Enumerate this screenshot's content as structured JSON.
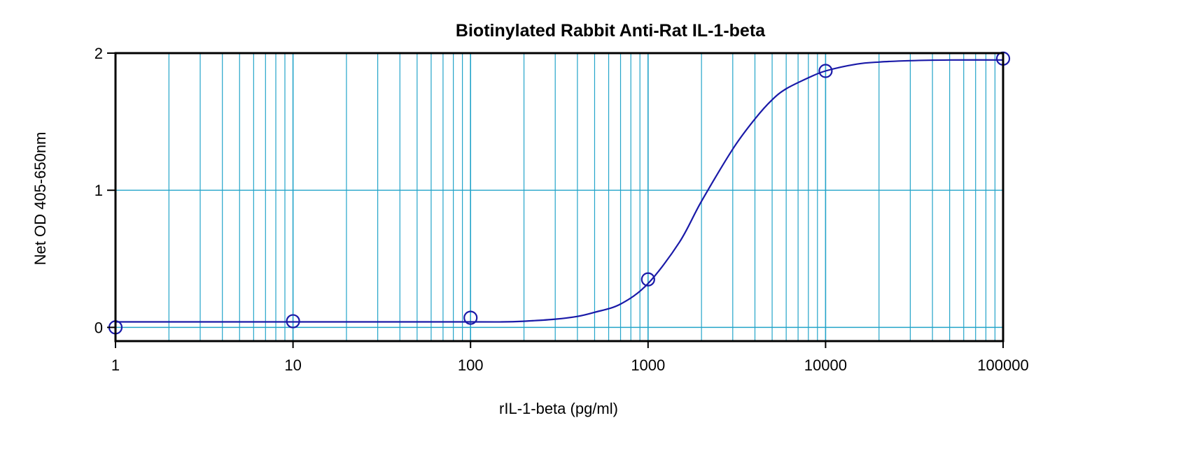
{
  "chart_data": {
    "type": "scatter",
    "title": "Biotinylated Rabbit Anti-Rat IL-1-beta",
    "xlabel": "rIL-1-beta (pg/ml)",
    "ylabel": "Net OD 405-650nm",
    "x_scale": "log",
    "xlim": [
      1,
      100000
    ],
    "ylim": [
      -0.1,
      2
    ],
    "x_ticks": [
      1,
      10,
      100,
      1000,
      10000,
      100000
    ],
    "x_tick_labels": [
      "1",
      "10",
      "100",
      "1000",
      "10000",
      "100000"
    ],
    "y_ticks": [
      0,
      1,
      2
    ],
    "y_tick_labels": [
      "0",
      "1",
      "2"
    ],
    "grid": true,
    "legend": "none",
    "series": [
      {
        "x": [
          1,
          10,
          100,
          1000,
          10000,
          100000
        ],
        "y": [
          0.0,
          0.045,
          0.07,
          0.35,
          1.87,
          1.96
        ]
      }
    ],
    "fit_curve": {
      "x": [
        1,
        10,
        100,
        150,
        200,
        300,
        400,
        500,
        700,
        1000,
        1500,
        2000,
        3000,
        4000,
        5000,
        6000,
        8000,
        10000,
        15000,
        20000,
        30000,
        50000,
        100000
      ],
      "y": [
        0.04,
        0.04,
        0.04,
        0.04,
        0.045,
        0.06,
        0.08,
        0.11,
        0.17,
        0.32,
        0.62,
        0.92,
        1.3,
        1.52,
        1.66,
        1.74,
        1.82,
        1.87,
        1.92,
        1.935,
        1.945,
        1.95,
        1.95
      ]
    },
    "colors": {
      "series": "#1a1aa8",
      "grid": "#23a4c9",
      "frame": "#000000"
    }
  }
}
